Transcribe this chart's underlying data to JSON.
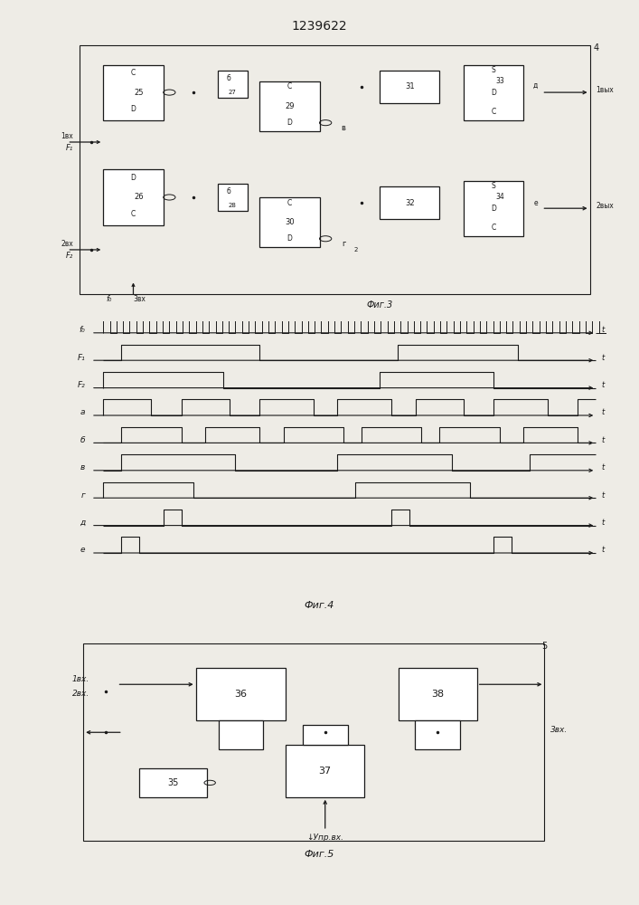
{
  "title": "1239622",
  "fig3_label": "Фиг.3",
  "fig4_label": "Фиг.4",
  "fig5_label": "Фиг.5",
  "bg_color": "#eeece6",
  "line_color": "#1a1a1a",
  "box_color": "#ffffff",
  "title_fontsize": 10
}
